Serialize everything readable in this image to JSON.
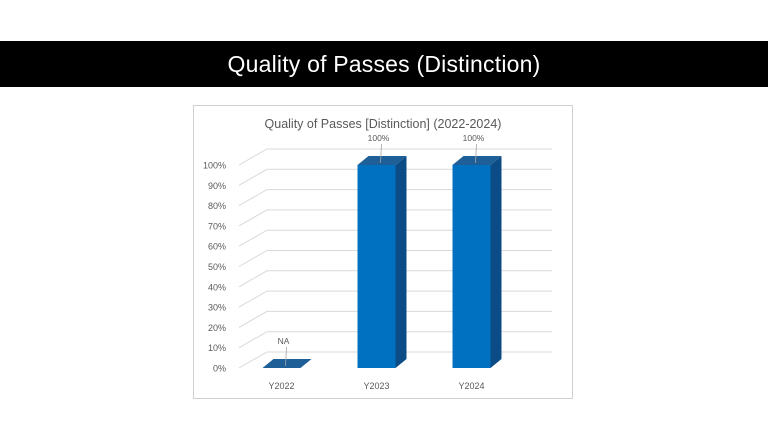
{
  "slide": {
    "title": "Quality of Passes (Distinction)"
  },
  "chart_data": {
    "type": "bar",
    "title": "Quality of Passes [Distinction] (2022-2024)",
    "categories": [
      "Y2022",
      "Y2023",
      "Y2024"
    ],
    "values": [
      0,
      100,
      100
    ],
    "data_labels": [
      "NA",
      "100%",
      "100%"
    ],
    "ylim": [
      0,
      100
    ],
    "yticks": [
      "0%",
      "10%",
      "20%",
      "30%",
      "40%",
      "50%",
      "60%",
      "70%",
      "80%",
      "90%",
      "100%"
    ],
    "xlabel": "",
    "ylabel": "",
    "grid": true,
    "style": "3d-column",
    "colors": {
      "front": "#0070C0",
      "top": "#1F5F97",
      "side": "#0B4C86",
      "grid": "#d9d9d9",
      "text": "#595959"
    }
  }
}
